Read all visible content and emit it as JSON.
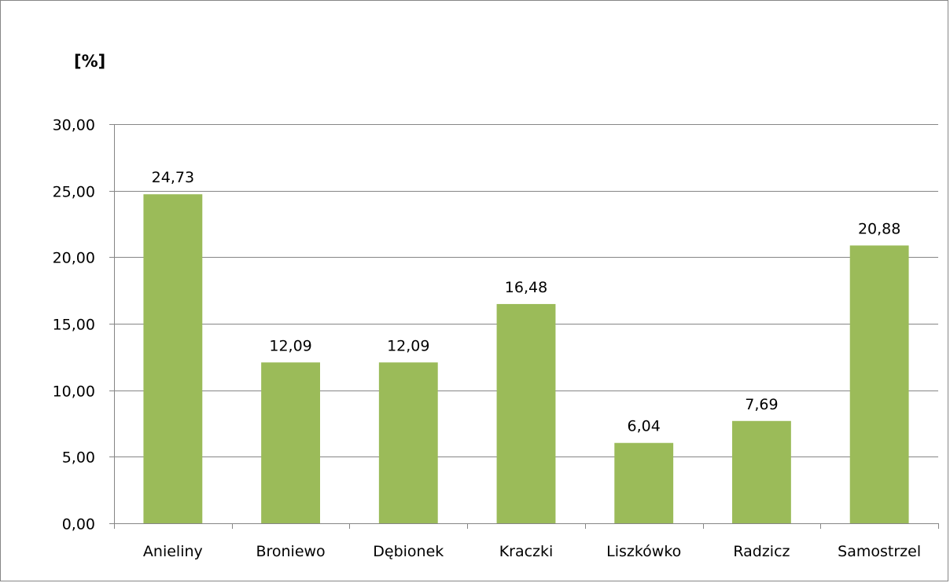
{
  "chart_data": {
    "type": "bar",
    "unit_label": "[%]",
    "categories": [
      "Anieliny",
      "Broniewo",
      "Dębionek",
      "Kraczki",
      "Liszkówko",
      "Radzicz",
      "Samostrzel"
    ],
    "values": [
      24.73,
      12.09,
      12.09,
      16.48,
      6.04,
      7.69,
      20.88
    ],
    "data_labels": [
      "24,73",
      "12,09",
      "12,09",
      "16,48",
      "6,04",
      "7,69",
      "20,88"
    ],
    "ylim": [
      0,
      30
    ],
    "yticks": [
      0,
      5,
      10,
      15,
      20,
      25,
      30
    ],
    "ytick_labels": [
      "0,00",
      "5,00",
      "10,00",
      "15,00",
      "20,00",
      "25,00",
      "30,00"
    ],
    "grid": true,
    "legend": "none",
    "bar_color": "#9BBB59",
    "grid_color": "#868686"
  }
}
